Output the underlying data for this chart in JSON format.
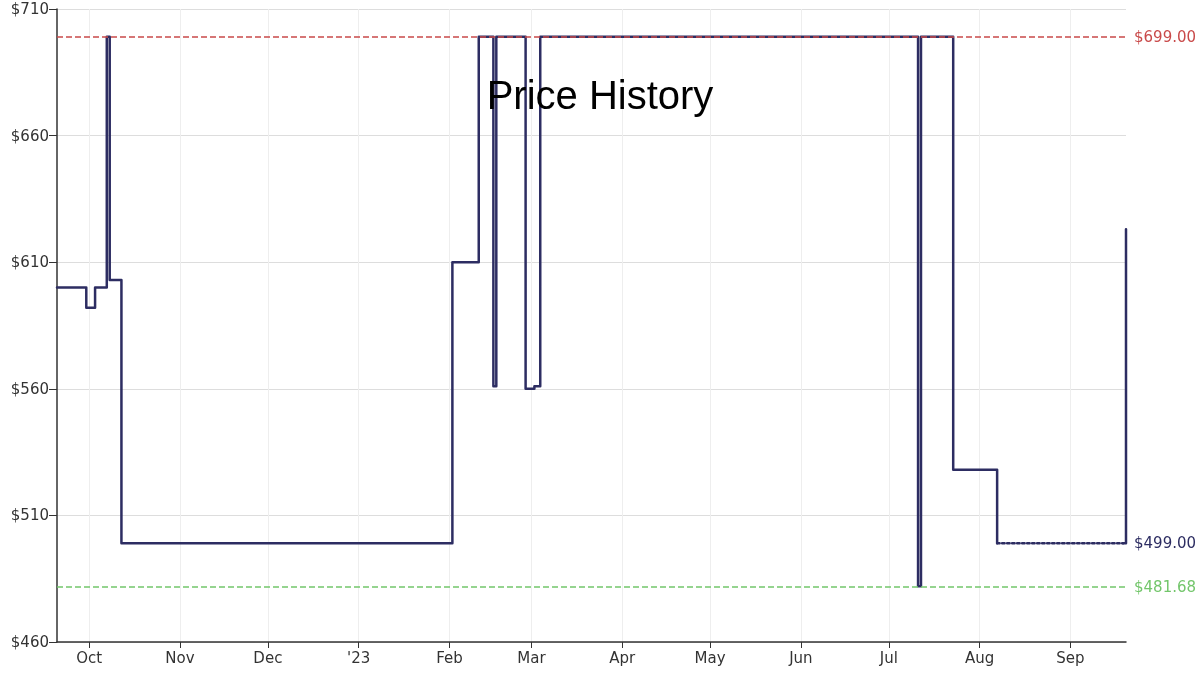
{
  "chart_data": {
    "type": "step",
    "title": "Price History",
    "series": [
      {
        "color": "#2d2d62",
        "line_style": "solid",
        "x": [
          "2022-09-20",
          "2022-09-30",
          "2022-10-03",
          "2022-10-07",
          "2022-10-08",
          "2022-10-12",
          "2023-02-02",
          "2023-02-11",
          "2023-02-16",
          "2023-02-17",
          "2023-02-27",
          "2023-03-02",
          "2023-03-04",
          "2023-07-11",
          "2023-07-12",
          "2023-07-23",
          "2023-08-07"
        ],
        "values": [
          600,
          592,
          600,
          699,
          603,
          499,
          610,
          699,
          561,
          699,
          560,
          561,
          699,
          482,
          699,
          528,
          499
        ]
      },
      {
        "color": "#2d2d62",
        "line_style": "dotted",
        "x": [
          "2023-08-07",
          "2023-09-19"
        ],
        "values": [
          499,
          499
        ]
      },
      {
        "color": "#2d2d62",
        "line_style": "solid",
        "x": [
          "2023-09-19",
          "2023-09-20"
        ],
        "values": [
          499,
          623
        ]
      }
    ],
    "xlim": [
      "2022-09-20",
      "2023-09-20"
    ],
    "xticks": [
      {
        "value": "2022-10-01",
        "label": "Oct"
      },
      {
        "value": "2022-11-01",
        "label": "Nov"
      },
      {
        "value": "2022-12-01",
        "label": "Dec"
      },
      {
        "value": "2023-01-01",
        "label": "'23"
      },
      {
        "value": "2023-02-01",
        "label": "Feb"
      },
      {
        "value": "2023-03-01",
        "label": "Mar"
      },
      {
        "value": "2023-04-01",
        "label": "Apr"
      },
      {
        "value": "2023-05-01",
        "label": "May"
      },
      {
        "value": "2023-06-01",
        "label": "Jun"
      },
      {
        "value": "2023-07-01",
        "label": "Jul"
      },
      {
        "value": "2023-08-01",
        "label": "Aug"
      },
      {
        "value": "2023-09-01",
        "label": "Sep"
      }
    ],
    "ylim": [
      460,
      710
    ],
    "yticks": [
      {
        "value": 460,
        "label": "$460"
      },
      {
        "value": 510,
        "label": "$510"
      },
      {
        "value": 560,
        "label": "$560"
      },
      {
        "value": 610,
        "label": "$610"
      },
      {
        "value": 660,
        "label": "$660"
      },
      {
        "value": 710,
        "label": "$710"
      }
    ],
    "ref_lines": [
      {
        "axis": "y",
        "value": 699,
        "label": "$699.00",
        "color": "#c94a4a",
        "line_style": "dashed"
      },
      {
        "axis": "y",
        "value": 481.68,
        "label": "$481.68",
        "color": "#73c66b",
        "line_style": "dashed"
      }
    ],
    "annotations": [
      {
        "text": "$499.00",
        "x": "2023-09-20",
        "y": 499
      }
    ],
    "grid": true
  }
}
